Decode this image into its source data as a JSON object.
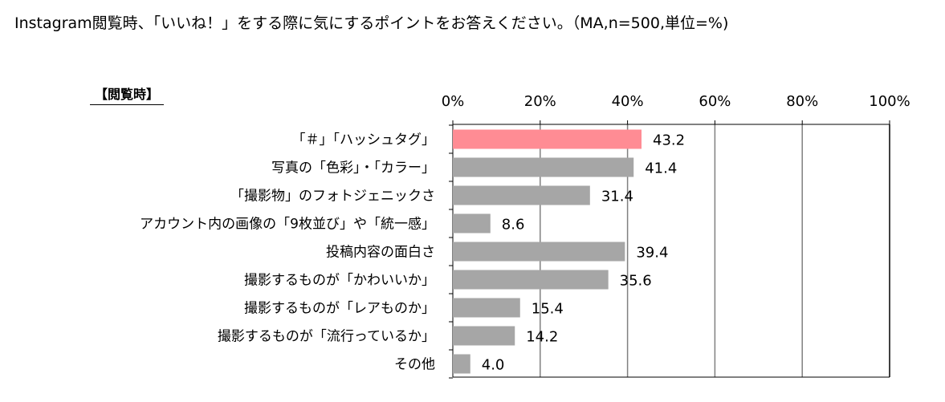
{
  "title": "Instagram閲覧時、「いいね！」をする際に気にするポイントをお答えください。（MA,n=500,単位=%)",
  "section_label": "【閲覧時】",
  "colors": {
    "highlight": "#ff8c94",
    "bar": "#a6a6a6",
    "grid": "#808080",
    "axis": "#000000"
  },
  "chart_data": {
    "type": "bar",
    "orientation": "horizontal",
    "title": "Instagram閲覧時、「いいね！」をする際に気にするポイントをお答えください。（MA,n=500,単位=%)",
    "categories": [
      "「＃」「ハッシュタグ」",
      "写真の「色彩」・「カラー」",
      "「撮影物」のフォトジェニックさ",
      "アカウント内の画像の「9枚並び」や「統一感」",
      "投稿内容の面白さ",
      "撮影するものが「かわいいか」",
      "撮影するものが「レアものか」",
      "撮影するものが「流行っているか」",
      "その他"
    ],
    "values": [
      43.2,
      41.4,
      31.4,
      8.6,
      39.4,
      35.6,
      15.4,
      14.2,
      4.0
    ],
    "value_labels": [
      "43.2",
      "41.4",
      "31.4",
      "8.6",
      "39.4",
      "35.6",
      "15.4",
      "14.2",
      "4.0"
    ],
    "highlight_index": 0,
    "xlim": [
      0,
      100
    ],
    "xticks": [
      "0%",
      "20%",
      "40%",
      "60%",
      "80%",
      "100%"
    ],
    "xtick_values": [
      0,
      20,
      40,
      60,
      80,
      100
    ],
    "grid": true,
    "axis_position": "top"
  }
}
